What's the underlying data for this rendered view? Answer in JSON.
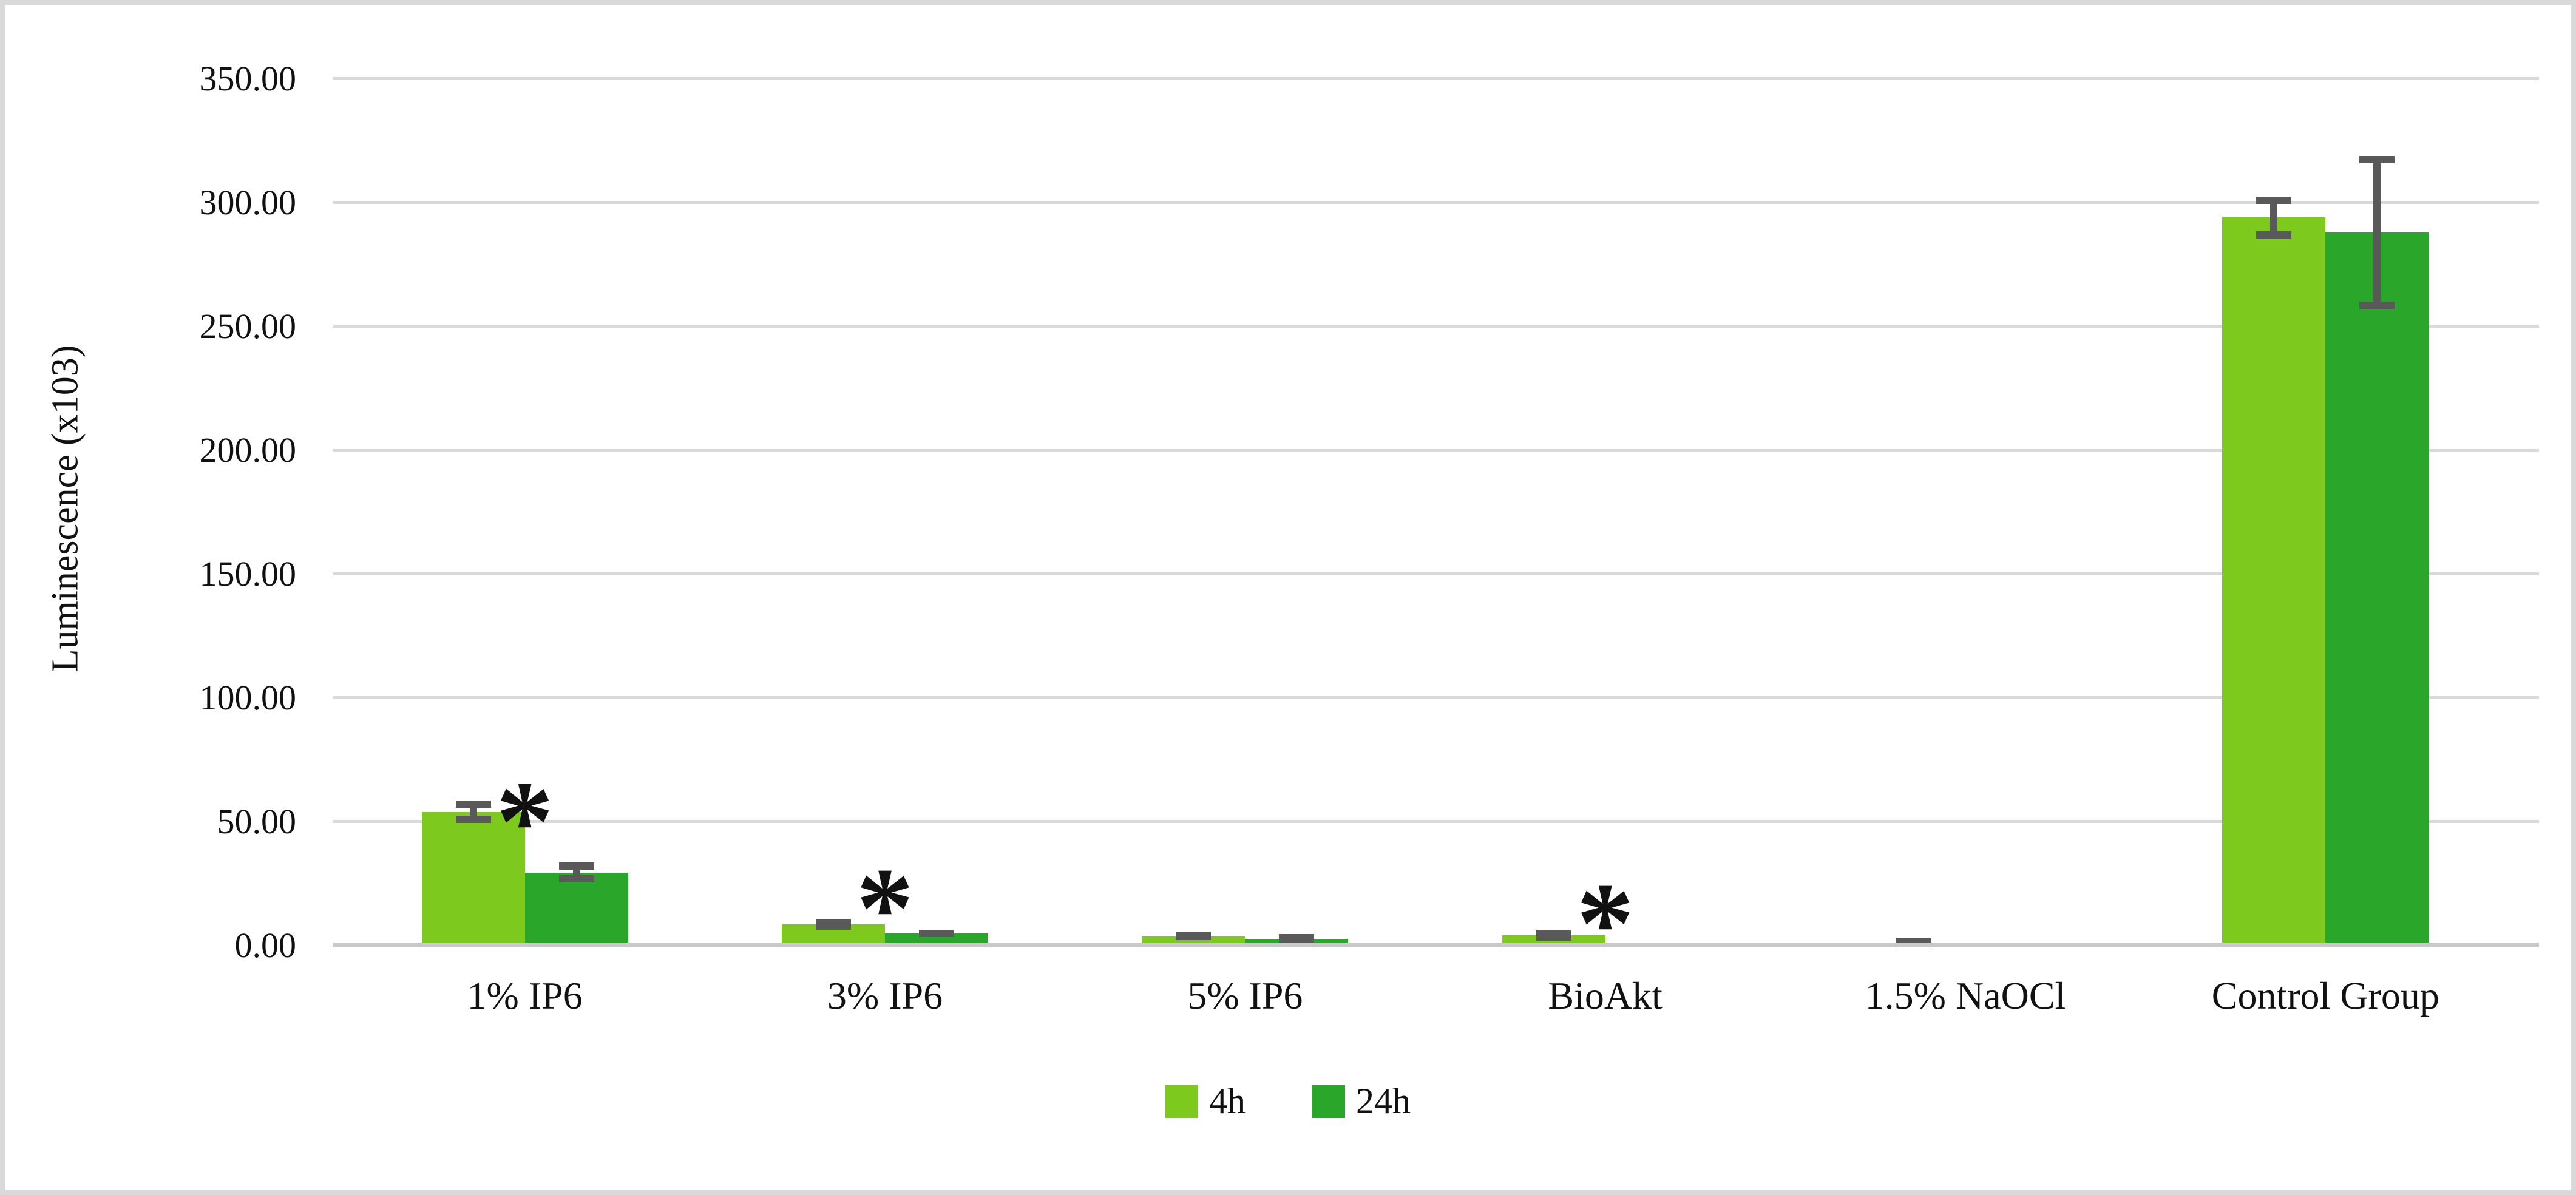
{
  "figure": {
    "background": "#ffffff",
    "border_color": "#d9d9d9"
  },
  "axis": {
    "y_title": "Luminescence (x103)",
    "y_ticks": [
      {
        "value": 0,
        "label": "0.00"
      },
      {
        "value": 50,
        "label": "50.00"
      },
      {
        "value": 100,
        "label": "100.00"
      },
      {
        "value": 150,
        "label": "150.00"
      },
      {
        "value": 200,
        "label": "200.00"
      },
      {
        "value": 250,
        "label": "250.00"
      },
      {
        "value": 300,
        "label": "300.00"
      },
      {
        "value": 350,
        "label": "350.00"
      }
    ]
  },
  "chart_data": {
    "type": "bar",
    "title": "",
    "xlabel": "",
    "ylabel": "Luminescence (x103)",
    "ylim": [
      0,
      350
    ],
    "gridline_step": 50,
    "grid": true,
    "legend_position": "bottom-center",
    "categories": [
      "1% IP6",
      "3% IP6",
      "5% IP6",
      "BioAkt",
      "1.5% NaOCl",
      "Control Group"
    ],
    "series": [
      {
        "name": "4h",
        "color": "#7dc91e",
        "values": [
          54,
          8.5,
          3.8,
          4.2,
          1.2,
          294
        ],
        "errors": [
          4.5,
          2.2,
          1.3,
          2.2,
          0.9,
          8.5
        ]
      },
      {
        "name": "24h",
        "color": "#2aa72a",
        "values": [
          29.5,
          5,
          2.6,
          0,
          0,
          288
        ],
        "errors": [
          4,
          1.5,
          1,
          0,
          0,
          31
        ]
      }
    ],
    "significance_marks": [
      {
        "category": "1% IP6",
        "symbol": "*",
        "y": 72
      },
      {
        "category": "3% IP6",
        "symbol": "*",
        "y": 37
      },
      {
        "category": "BioAkt",
        "symbol": "*",
        "y": 31
      }
    ],
    "colors": {
      "gridline": "#d9d9d9",
      "baseline": "#c9c9c9",
      "error_bar": "#595959",
      "text": "#111111"
    }
  }
}
